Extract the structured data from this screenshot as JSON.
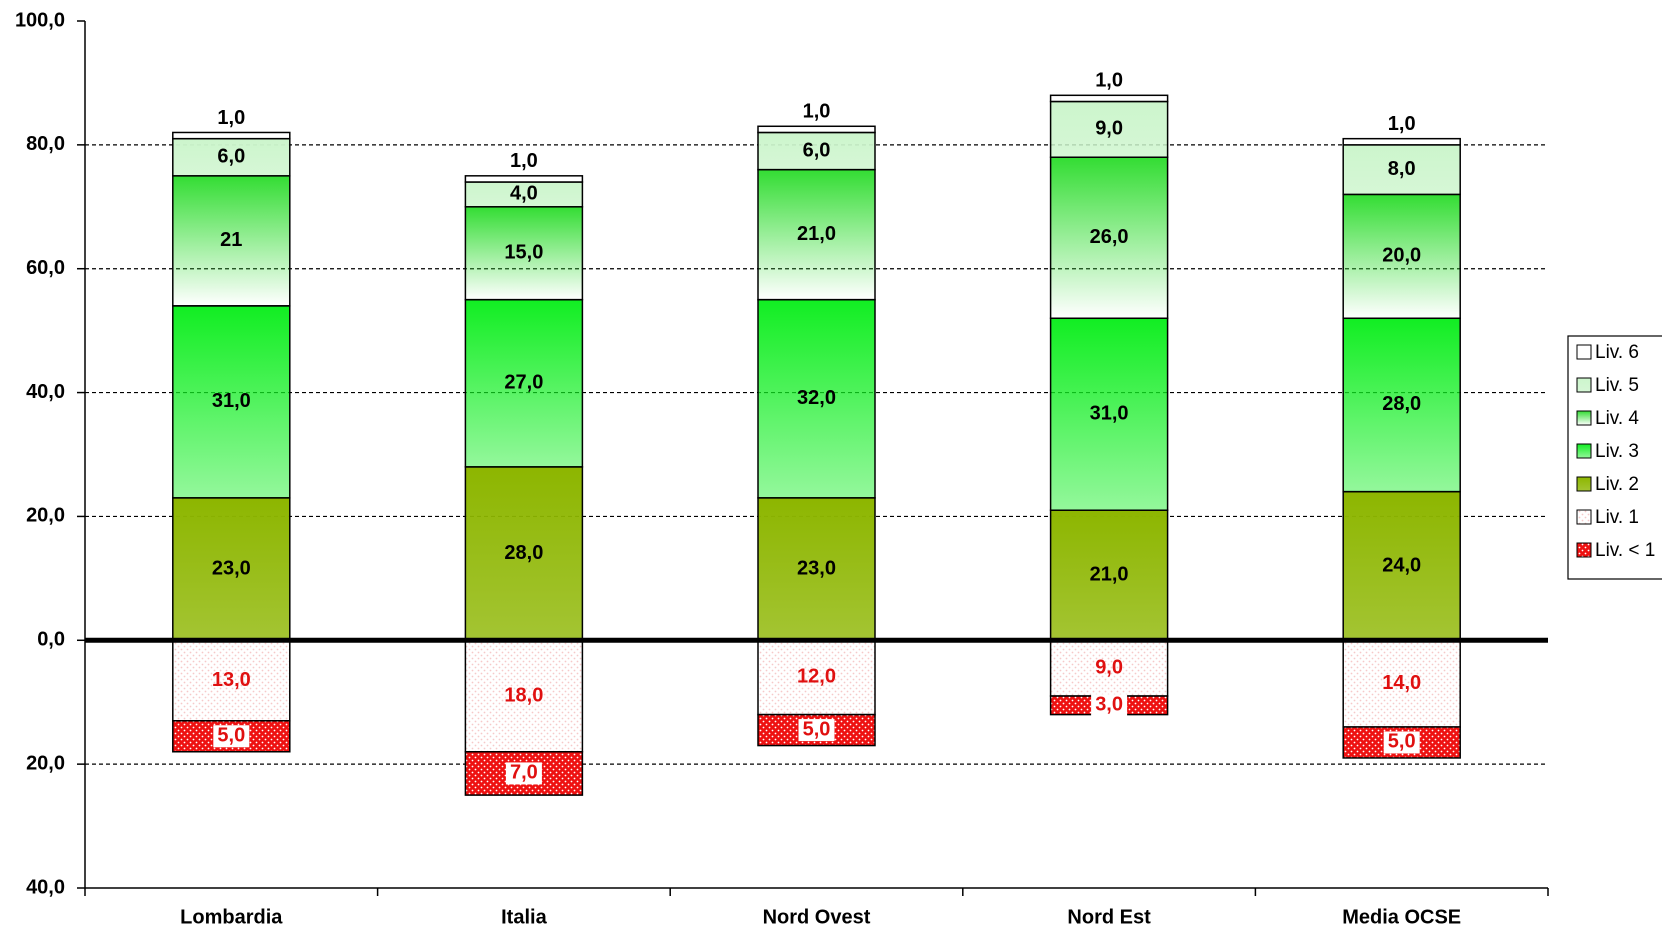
{
  "chart_data": {
    "type": "stacked_bar",
    "categories": [
      "Lombardia",
      "Italia",
      "Nord Ovest",
      "Nord Est",
      "Media OCSE"
    ],
    "ylim": [
      -40,
      100
    ],
    "yticks": [
      {
        "value": -40,
        "label": "40,0"
      },
      {
        "value": -20,
        "label": "20,0"
      },
      {
        "value": 0,
        "label": "0,0"
      },
      {
        "value": 20,
        "label": "20,0"
      },
      {
        "value": 40,
        "label": "40,0"
      },
      {
        "value": 60,
        "label": "60,0"
      },
      {
        "value": 80,
        "label": "80,0"
      },
      {
        "value": 100,
        "label": "100,0"
      }
    ],
    "grid": true,
    "legend": "right",
    "series": [
      {
        "name": "Liv. < 1",
        "color": "#ee1111",
        "values": [
          -5,
          -7,
          -5,
          -3,
          -5
        ],
        "value_labels": [
          "5,0",
          "7,0",
          "5,0",
          "3,0",
          "5,0"
        ]
      },
      {
        "name": "Liv. 1",
        "color": "#f6c9c9",
        "values": [
          -13,
          -18,
          -12,
          -9,
          -14
        ],
        "value_labels": [
          "13,0",
          "18,0",
          "12,0",
          "9,0",
          "14,0"
        ]
      },
      {
        "name": "Liv. 2",
        "color": "#8db600",
        "values": [
          23,
          28,
          23,
          21,
          24
        ],
        "value_labels": [
          "23,0",
          "28,0",
          "23,0",
          "21,0",
          "24,0"
        ]
      },
      {
        "name": "Liv. 3",
        "color": "#11ee22",
        "values": [
          31,
          27,
          32,
          31,
          28
        ],
        "value_labels": [
          "31,0",
          "27,0",
          "32,0",
          "31,0",
          "28,0"
        ]
      },
      {
        "name": "Liv. 4",
        "color": "#33dd33",
        "values": [
          21,
          15,
          21,
          26,
          20
        ],
        "value_labels": [
          "21",
          "15,0",
          "21,0",
          "26,0",
          "20,0"
        ]
      },
      {
        "name": "Liv. 5",
        "color": "#ccf5cc",
        "values": [
          6,
          4,
          6,
          9,
          8
        ],
        "value_labels": [
          "6,0",
          "4,0",
          "6,0",
          "9,0",
          "8,0"
        ]
      },
      {
        "name": "Liv. 6",
        "color": "#ffffff",
        "values": [
          1,
          1,
          1,
          1,
          1
        ],
        "value_labels": [
          "1,0",
          "1,0",
          "1,0",
          "1,0",
          "1,0"
        ]
      }
    ]
  }
}
